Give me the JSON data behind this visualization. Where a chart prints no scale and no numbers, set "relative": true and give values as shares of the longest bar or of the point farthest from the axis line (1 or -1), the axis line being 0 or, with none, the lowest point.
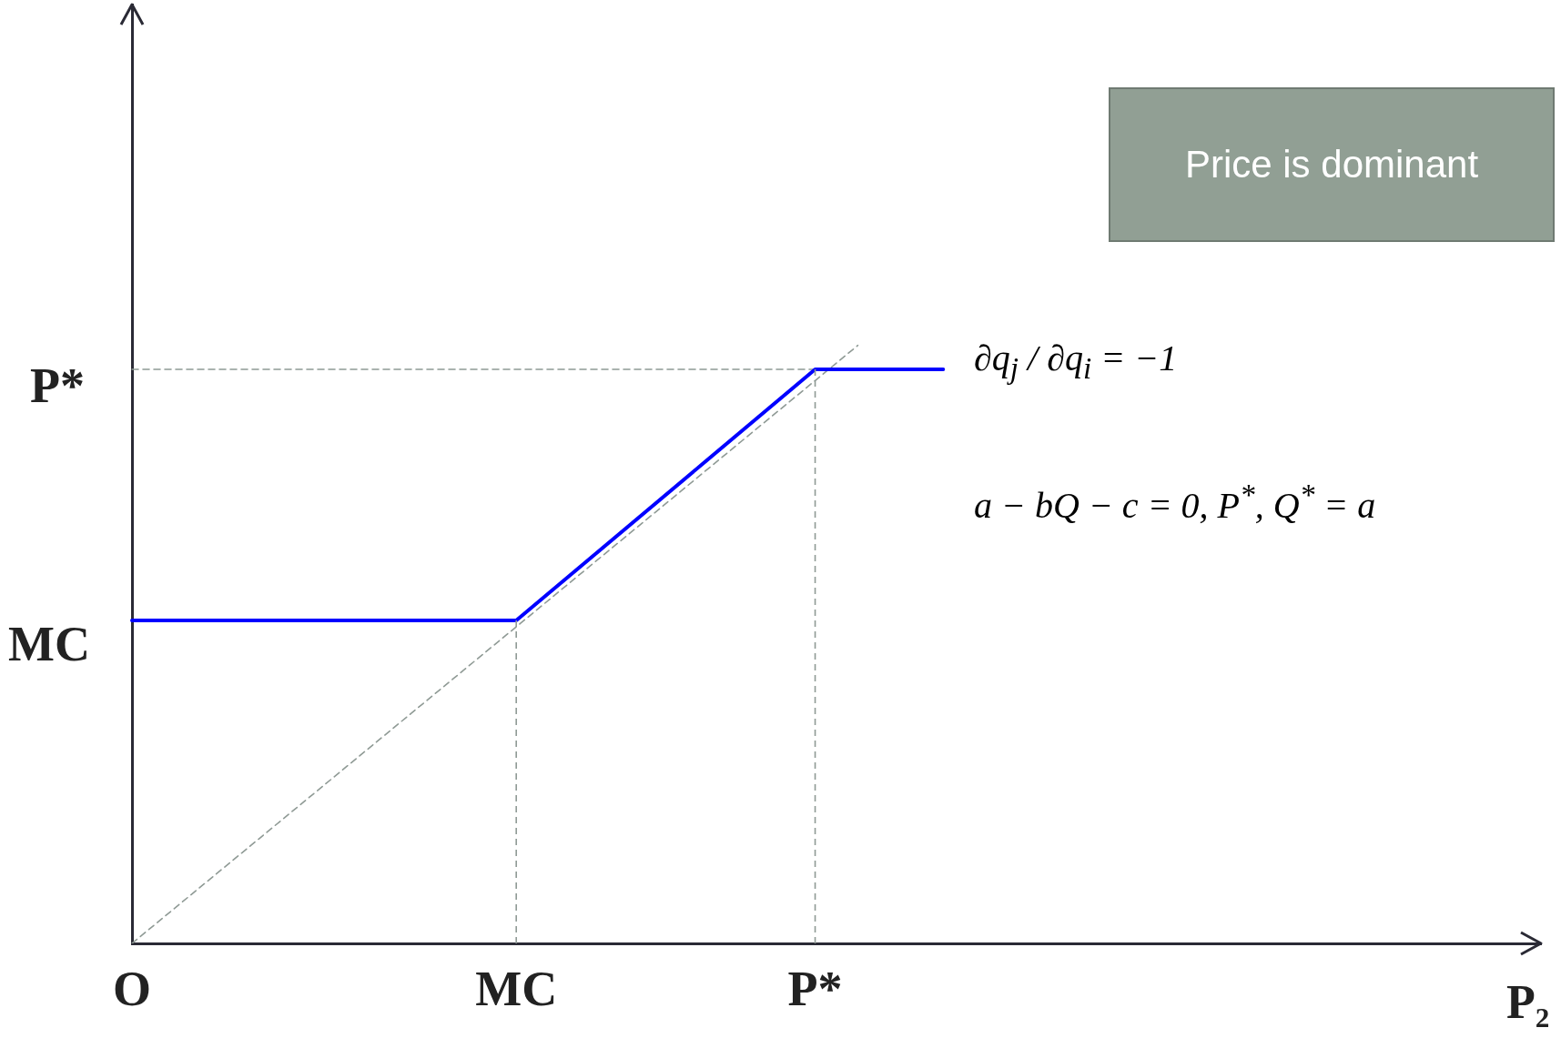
{
  "chart_data": {
    "type": "line",
    "xlabel": "P₂",
    "relative": true,
    "categories": [
      "O",
      null,
      null,
      null,
      null,
      null,
      null,
      null,
      null,
      "MC",
      null,
      null,
      null,
      null,
      null,
      null,
      "P*",
      null,
      null,
      null,
      null,
      null,
      null,
      null,
      null,
      null,
      null,
      null,
      null,
      null,
      null,
      null,
      null,
      null
    ],
    "series": [
      {
        "color": "#0000ff",
        "values": [
          0.54,
          null,
          null,
          null,
          null,
          null,
          null,
          null,
          null,
          0.54,
          null,
          null,
          null,
          null,
          null,
          null,
          0.96,
          null,
          null,
          0.96,
          null,
          null,
          null,
          null,
          null,
          null,
          null,
          null,
          null,
          null,
          null,
          null,
          null,
          null
        ],
        "line_style": "solid"
      },
      {
        "color": "#8f9a95",
        "values": [
          0,
          null,
          null,
          null,
          null,
          null,
          null,
          null,
          null,
          null,
          null,
          null,
          null,
          null,
          null,
          null,
          null,
          1,
          null,
          null,
          null,
          null,
          null,
          null,
          null,
          null,
          null,
          null,
          null,
          null,
          null,
          null,
          null,
          null
        ],
        "line_style": "dashed"
      },
      {
        "color": "#8f9a95",
        "values": [
          0.96,
          null,
          null,
          null,
          null,
          null,
          null,
          null,
          null,
          null,
          null,
          null,
          null,
          null,
          null,
          null,
          0.96,
          null,
          null,
          null,
          null,
          null,
          null,
          null,
          null,
          null,
          null,
          null,
          null,
          null,
          null,
          null,
          null,
          null
        ],
        "line_style": "dashed"
      }
    ],
    "ref_lines": [
      {
        "axis": "x",
        "value": "MC",
        "color": "#8f9a95",
        "line_style": "dashed"
      },
      {
        "axis": "x",
        "value": "P*",
        "color": "#8f9a95",
        "line_style": "dashed"
      }
    ],
    "annotations": [
      "Price is  dominant",
      "∂q$_{j}$ / ∂q$_{i}$ = −1",
      "a − bQ − c = 0, P$^{*}$, Q$^{*}$ = a",
      "MC",
      "P*"
    ],
    "grid": false,
    "legend": false,
    "marker": "none"
  }
}
